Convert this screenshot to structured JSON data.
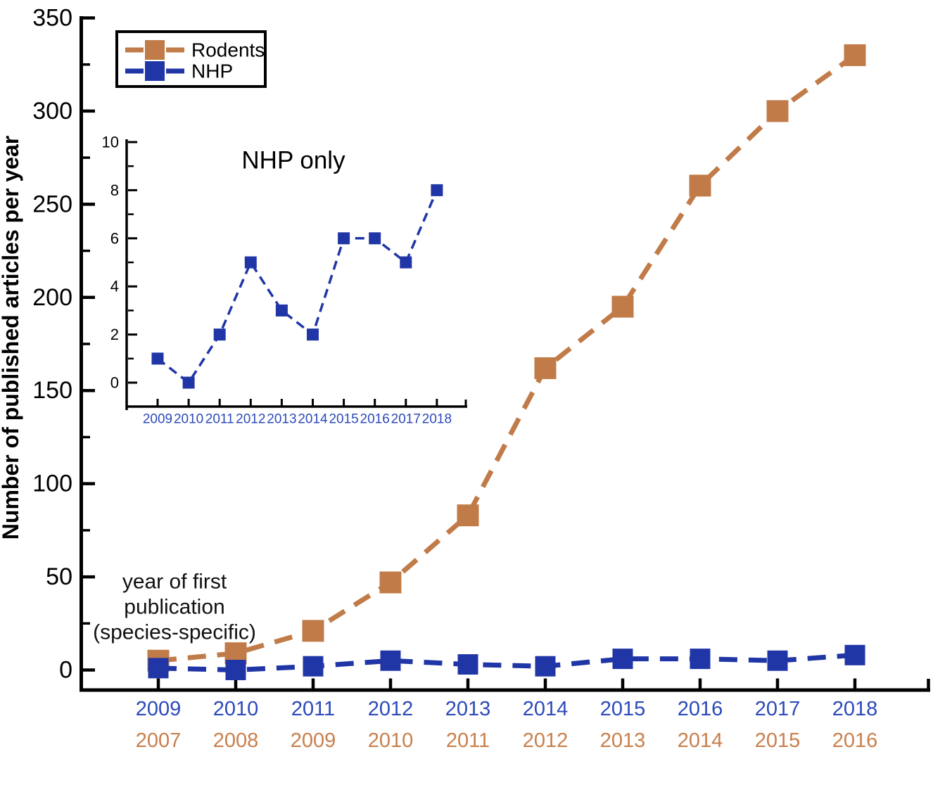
{
  "figure": {
    "y_axis_title": "Number of published articles per year",
    "annotation_lines": [
      "year of first",
      "publication",
      "(species-specific)"
    ],
    "legend_items": [
      {
        "label": "Rodents",
        "color_key": "rodents"
      },
      {
        "label": "NHP",
        "color_key": "nhp"
      }
    ],
    "colors": {
      "rodents": "#C17B48",
      "nhp": "#2136A6",
      "rodents_axis_label": "#C97F4B",
      "nhp_axis_label": "#2C49BA",
      "axis": "#000000"
    }
  },
  "chart_data": [
    {
      "id": "main",
      "type": "line",
      "title": "",
      "xlabel": "",
      "ylabel": "Number of published articles per year",
      "ylim": [
        0,
        350
      ],
      "ytick_labels": [
        "0",
        "50",
        "100",
        "150",
        "200",
        "250",
        "300",
        "350"
      ],
      "ytick_major_step": 50,
      "ytick_minor_step": 25,
      "grid": false,
      "line_style": "dashed",
      "marker": "square",
      "legend_position": "top-left",
      "x_label_rows": [
        {
          "name": "nhp-years",
          "color_key": "nhp_axis_label",
          "labels": [
            "2009",
            "2010",
            "2011",
            "2012",
            "2013",
            "2014",
            "2015",
            "2016",
            "2017",
            "2018"
          ]
        },
        {
          "name": "rodent-years",
          "color_key": "rodents_axis_label",
          "labels": [
            "2007",
            "2008",
            "2009",
            "2010",
            "2011",
            "2012",
            "2013",
            "2014",
            "2015",
            "2016"
          ]
        }
      ],
      "series": [
        {
          "name": "Rodents",
          "color_key": "rodents",
          "style": "dashed",
          "marker": "square",
          "years": [
            "2007",
            "2008",
            "2009",
            "2010",
            "2011",
            "2012",
            "2013",
            "2014",
            "2015",
            "2016"
          ],
          "values": [
            5,
            9,
            21,
            47,
            83,
            162,
            195,
            260,
            300,
            330
          ]
        },
        {
          "name": "NHP",
          "color_key": "nhp",
          "style": "dashed",
          "marker": "square",
          "years": [
            "2009",
            "2010",
            "2011",
            "2012",
            "2013",
            "2014",
            "2015",
            "2016",
            "2017",
            "2018"
          ],
          "values": [
            1,
            0,
            2,
            5,
            3,
            2,
            6,
            6,
            5,
            8
          ]
        }
      ]
    },
    {
      "id": "inset",
      "type": "line",
      "title": "NHP only",
      "ylim": [
        0,
        10
      ],
      "ytick_labels": [
        "0",
        "2",
        "4",
        "6",
        "8",
        "10"
      ],
      "ytick_major_step": 2,
      "ytick_minor_step": 1,
      "grid": false,
      "categories": [
        "2009",
        "2010",
        "2011",
        "2012",
        "2013",
        "2014",
        "2015",
        "2016",
        "2017",
        "2018"
      ],
      "series": [
        {
          "name": "NHP",
          "color_key": "nhp",
          "style": "dashed",
          "marker": "square",
          "values": [
            1,
            0,
            2,
            5,
            3,
            2,
            6,
            6,
            5,
            8
          ]
        }
      ]
    }
  ]
}
